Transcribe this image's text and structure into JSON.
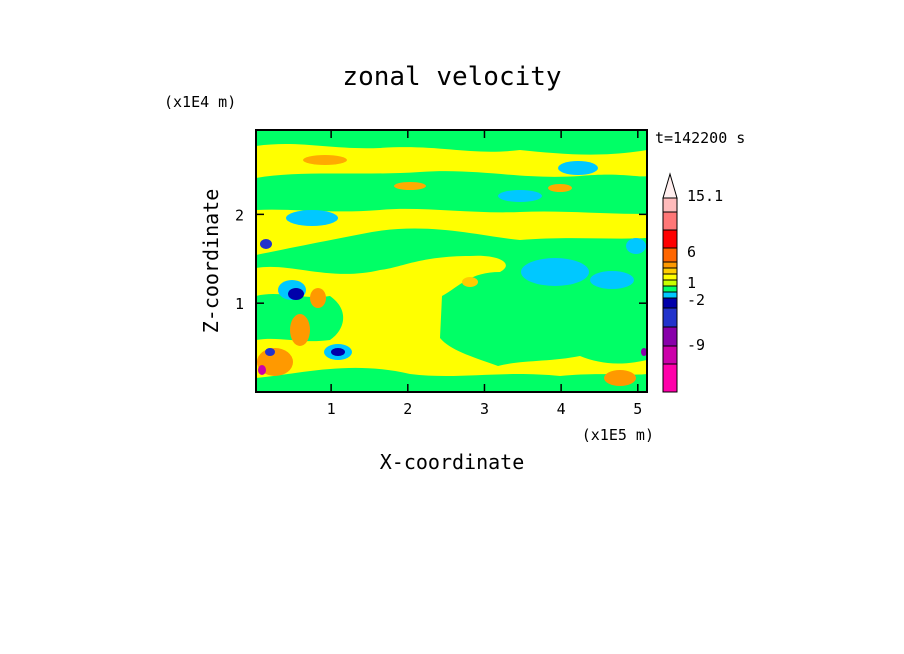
{
  "chart_data": {
    "type": "heatmap",
    "title": "zonal velocity",
    "xlabel": "X-coordinate",
    "ylabel": "Z-coordinate",
    "x_unit": "(x1E5 m)",
    "y_unit": "(x1E4 m)",
    "time_label": "t=142200 s",
    "xlim": [
      0.02,
      5.12
    ],
    "ylim": [
      0.0,
      2.95
    ],
    "x_ticks": [
      "1",
      "2",
      "3",
      "4",
      "5"
    ],
    "y_ticks": [
      "1",
      "2"
    ],
    "x_tick_values": [
      1,
      2,
      3,
      4,
      5
    ],
    "y_tick_values": [
      1,
      2
    ],
    "colorbar": {
      "labels": [
        "15.1",
        "6",
        "1",
        "-2",
        "-9"
      ],
      "colors": [
        "#ff00aa",
        "#cc00aa",
        "#8800aa",
        "#2233cc",
        "#0000aa",
        "#00c8ff",
        "#00ff66",
        "#c8ff00",
        "#ffff00",
        "#ffcc00",
        "#ff9900",
        "#ff6600",
        "#ff0000",
        "#ff7777",
        "#ffbbbb"
      ],
      "extend_max": true
    }
  }
}
